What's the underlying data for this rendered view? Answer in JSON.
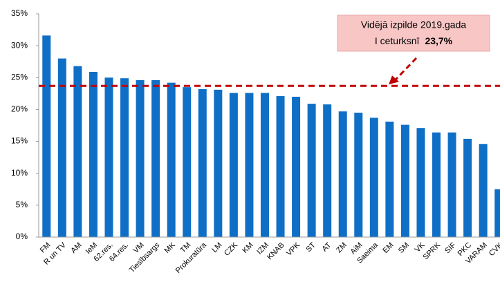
{
  "chart_data": {
    "type": "bar",
    "categories": [
      "FM",
      "R un TV",
      "AM",
      "IeM",
      "62.res.",
      "64.res.",
      "VM",
      "Tiesībsargs",
      "MK",
      "TM",
      "Prokuratūra",
      "LM",
      "CZK",
      "KM",
      "IZM",
      "KNAB",
      "VPK",
      "ST",
      "AT",
      "ZM",
      "AiM",
      "Saeima",
      "EM",
      "SM",
      "VK",
      "SPRK",
      "SIF",
      "PKC",
      "VARAM",
      "CVK"
    ],
    "values": [
      31.6,
      28.0,
      26.8,
      25.9,
      25.0,
      24.9,
      24.6,
      24.6,
      24.2,
      23.5,
      23.2,
      23.1,
      22.6,
      22.6,
      22.6,
      22.1,
      22.0,
      20.9,
      20.8,
      19.7,
      19.5,
      18.7,
      18.1,
      17.6,
      17.1,
      16.4,
      16.4,
      15.4,
      14.6,
      7.5
    ],
    "color": "#0f6fc6",
    "ylim": [
      0,
      35
    ],
    "yticks": [
      {
        "value": 0,
        "label": "0%"
      },
      {
        "value": 5,
        "label": "5%"
      },
      {
        "value": 10,
        "label": "10%"
      },
      {
        "value": 15,
        "label": "15%"
      },
      {
        "value": 20,
        "label": "20%"
      },
      {
        "value": 25,
        "label": "25%"
      },
      {
        "value": 30,
        "label": "30%"
      },
      {
        "value": 35,
        "label": "35%"
      }
    ],
    "average": {
      "value": 23.7,
      "color": "#c00000",
      "line1": "Vidējā izpilde 2019.gada",
      "line2": "I ceturksnī",
      "value_label": "23,7%"
    }
  }
}
